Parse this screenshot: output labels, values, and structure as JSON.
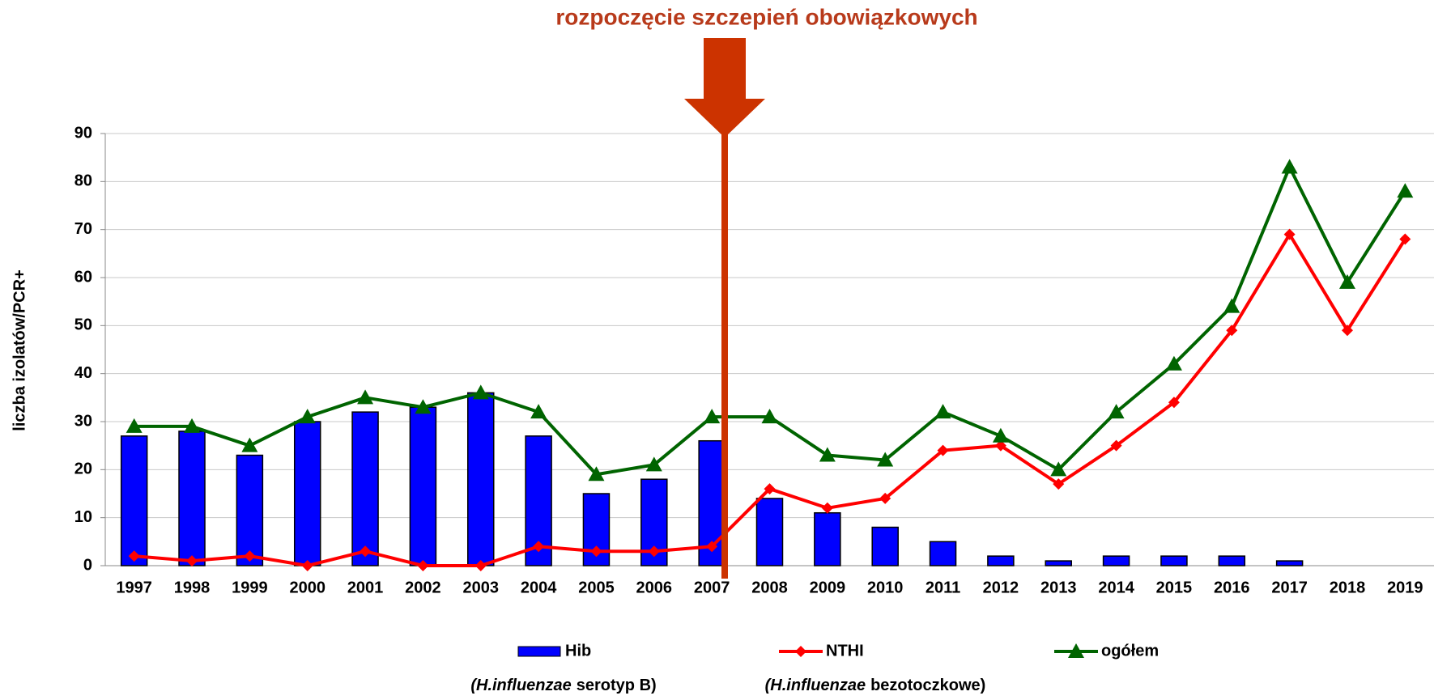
{
  "chart_data": {
    "type": "bar-line",
    "annotation": "rozpoczęcie szczepień obowiązkowych",
    "y_label": "liczba izolatów/PCR+",
    "categories": [
      "1997",
      "1998",
      "1999",
      "2000",
      "2001",
      "2002",
      "2003",
      "2004",
      "2005",
      "2006",
      "2007",
      "2008",
      "2009",
      "2010",
      "2011",
      "2012",
      "2013",
      "2014",
      "2015",
      "2016",
      "2017",
      "2018",
      "2019"
    ],
    "series": [
      {
        "name": "Hib",
        "kind": "bar",
        "color": "#0000ff",
        "values": [
          27,
          28,
          23,
          30,
          32,
          33,
          36,
          27,
          15,
          18,
          26,
          14,
          11,
          8,
          5,
          2,
          1,
          2,
          2,
          2,
          1,
          0,
          0
        ]
      },
      {
        "name": "NTHI",
        "kind": "line",
        "marker": "diamond",
        "color": "#ff0000",
        "values": [
          2,
          1,
          2,
          0,
          3,
          0,
          0,
          4,
          3,
          3,
          4,
          16,
          12,
          14,
          24,
          25,
          17,
          25,
          34,
          49,
          69,
          49,
          68
        ]
      },
      {
        "name": "ogółem",
        "kind": "line",
        "marker": "triangle",
        "color": "#006400",
        "values": [
          29,
          29,
          25,
          31,
          35,
          33,
          36,
          32,
          19,
          21,
          31,
          31,
          23,
          22,
          32,
          27,
          20,
          32,
          42,
          54,
          83,
          59,
          78
        ]
      }
    ],
    "legend_notes": [
      {
        "italic": "(H.influenzae",
        "normal": "serotyp B)"
      },
      {
        "italic": "(H.influenzae",
        "normal": "bezotoczkowe)"
      }
    ],
    "ylim": [
      0,
      90
    ],
    "yticks": [
      0,
      10,
      20,
      30,
      40,
      50,
      60,
      70,
      80,
      90
    ],
    "grid": true
  }
}
